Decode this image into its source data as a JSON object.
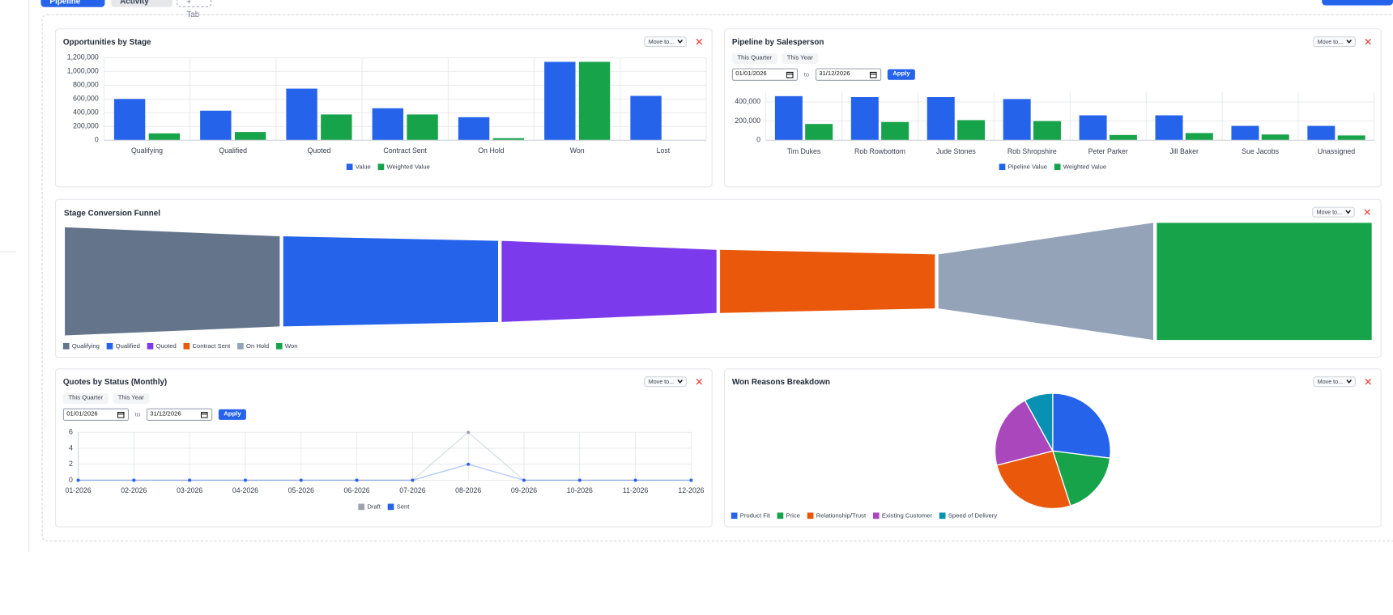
{
  "tabs": [
    "Pipeline",
    "Activity",
    "+ Tab"
  ],
  "widget_actions": {
    "move": "Move to..."
  },
  "filters": {
    "quick": [
      "This Quarter",
      "This Year"
    ],
    "from": "01/01/2026",
    "separator": "to",
    "to": "31/12/2026",
    "apply": "Apply"
  },
  "chart_data": [
    {
      "type": "bar",
      "title": "Opportunities by Stage",
      "categories": [
        "Qualifying",
        "Qualified",
        "Quoted",
        "Contract Sent",
        "On Hold",
        "Won",
        "Lost"
      ],
      "series": [
        {
          "name": "Value",
          "color": "#2563eb",
          "values": [
            600000,
            430000,
            750000,
            465000,
            335000,
            1140000,
            645000
          ]
        },
        {
          "name": "Weighted Value",
          "color": "#16a34a",
          "values": [
            100000,
            120000,
            375000,
            375000,
            30000,
            1140000,
            0
          ]
        }
      ],
      "ylim": [
        0,
        1200000
      ],
      "yticks": [
        0,
        {
          "value": 200000,
          "label": "200,000"
        },
        {
          "value": 400000,
          "label": "400,000"
        },
        {
          "value": 600000,
          "label": "600,000"
        },
        {
          "value": 800000,
          "label": "800,000"
        },
        {
          "value": 1000000,
          "label": "1,000,000"
        },
        {
          "value": 1200000,
          "label": "1,200,000"
        }
      ],
      "grid": true,
      "legend": "bottom"
    },
    {
      "type": "bar",
      "title": "Pipeline by Salesperson",
      "categories": [
        "Tim  Dukes",
        "Rob Rowbottom",
        "Jude Stones",
        "Rob  Shropshire",
        "Peter Parker",
        "Jill Baker",
        "Sue Jacobs",
        "Unassigned"
      ],
      "series": [
        {
          "name": "Pipeline Value",
          "color": "#2563eb",
          "values": [
            460000,
            450000,
            450000,
            430000,
            260000,
            260000,
            150000,
            150000
          ]
        },
        {
          "name": "Weighted Value",
          "color": "#16a34a",
          "values": [
            170000,
            190000,
            210000,
            200000,
            55000,
            75000,
            60000,
            50000
          ]
        }
      ],
      "ylim": [
        0,
        500000
      ],
      "yticks": [
        0,
        {
          "value": 200000,
          "label": "200,000"
        },
        {
          "value": 400000,
          "label": "400,000"
        }
      ],
      "grid": true,
      "legend": "bottom"
    },
    {
      "type": "funnel",
      "title": "Stage Conversion Funnel",
      "categories": [
        "Qualifying",
        "Qualified",
        "Quoted",
        "Contract Sent",
        "On Hold",
        "Won"
      ],
      "values": [
        12,
        10,
        9,
        7,
        6,
        13
      ],
      "colors": [
        "#64748b",
        "#2563eb",
        "#7c3aed",
        "#ea580c",
        "#94a3b8",
        "#16a34a"
      ],
      "legend": "bottom-left"
    },
    {
      "type": "line",
      "title": "Quotes by Status (Monthly)",
      "categories": [
        "01-2026",
        "02-2026",
        "03-2026",
        "04-2026",
        "05-2026",
        "06-2026",
        "07-2026",
        "08-2026",
        "09-2026",
        "10-2026",
        "11-2026",
        "12-2026"
      ],
      "series": [
        {
          "name": "Draft",
          "color": "#9ca3af",
          "values": [
            0,
            0,
            0,
            0,
            0,
            0,
            0,
            6,
            0,
            0,
            0,
            0
          ]
        },
        {
          "name": "Sent",
          "color": "#2563eb",
          "values": [
            0,
            0,
            0,
            0,
            0,
            0,
            0,
            2,
            0,
            0,
            0,
            0
          ]
        }
      ],
      "ylim": [
        0,
        6
      ],
      "yticks": [
        0,
        2,
        4,
        6
      ],
      "grid": true,
      "legend": "bottom"
    },
    {
      "type": "pie",
      "title": "Won Reasons Breakdown",
      "categories": [
        "Product Fit",
        "Price",
        "Relationship/Trust",
        "Existing Customer",
        "Speed of Delivery"
      ],
      "values": [
        27,
        18,
        26,
        21,
        8
      ],
      "colors": [
        "#2563eb",
        "#16a34a",
        "#ea580c",
        "#ab47bc",
        "#0891b2"
      ],
      "legend": "bottom-left"
    }
  ]
}
